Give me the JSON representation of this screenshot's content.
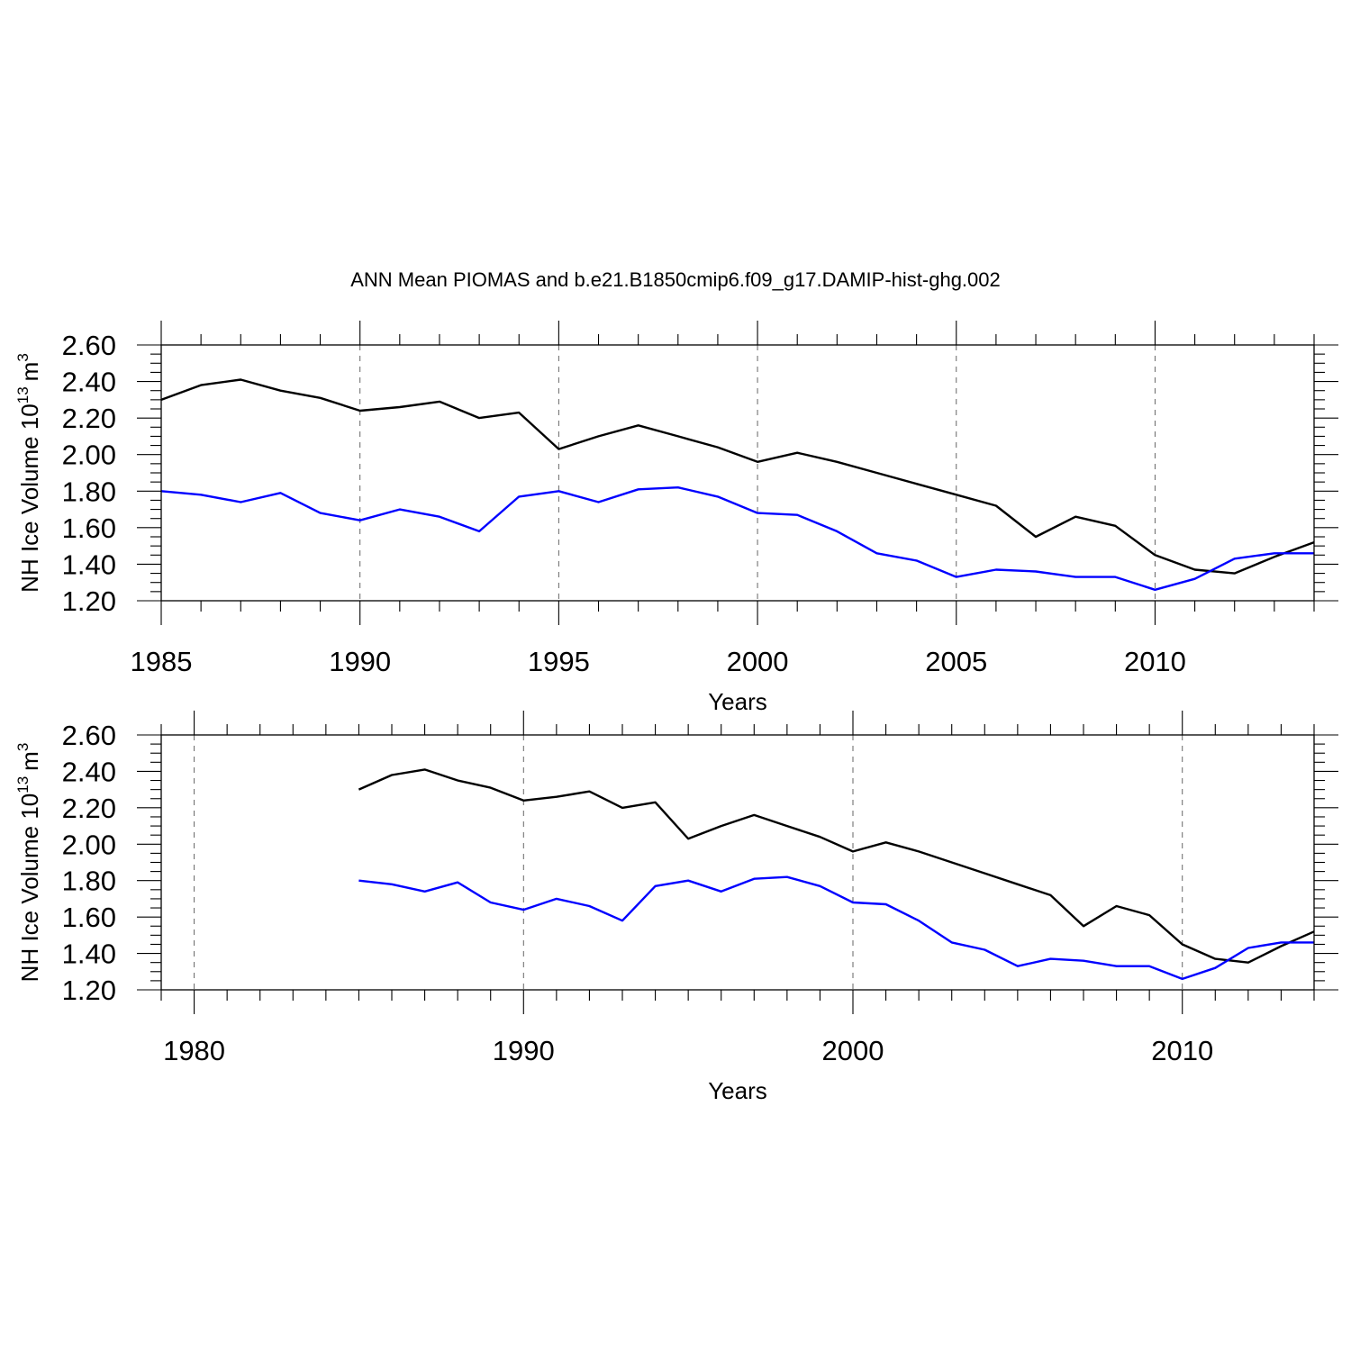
{
  "title": "ANN Mean PIOMAS and b.e21.B1850cmip6.f09_g17.DAMIP-hist-ghg.002",
  "colors": {
    "series_black": "#000000",
    "series_blue": "#0000ff"
  },
  "chart_data": [
    {
      "type": "line",
      "xlabel": "Years",
      "ylabel": "NH Ice Volume 10",
      "ylabel_sup": "13",
      "ylabel_unit": "m",
      "ylabel_unit_sup": "3",
      "xlim": [
        1985,
        2014
      ],
      "ylim": [
        1.2,
        2.6
      ],
      "x_major_ticks": [
        1985,
        1990,
        1995,
        2000,
        2005,
        2010
      ],
      "y_major_ticks": [
        1.2,
        1.4,
        1.6,
        1.8,
        2.0,
        2.2,
        2.4,
        2.6
      ],
      "x_tick_labels": [
        "1985",
        "1990",
        "1995",
        "2000",
        "2005",
        "2010"
      ],
      "y_tick_labels": [
        "1.20",
        "1.40",
        "1.60",
        "1.80",
        "2.00",
        "2.20",
        "2.40",
        "2.60"
      ],
      "grid": "vertical dashed at major x ticks",
      "x": [
        1985,
        1986,
        1987,
        1988,
        1989,
        1990,
        1991,
        1992,
        1993,
        1994,
        1995,
        1996,
        1997,
        1998,
        1999,
        2000,
        2001,
        2002,
        2003,
        2004,
        2005,
        2006,
        2007,
        2008,
        2009,
        2010,
        2011,
        2012,
        2013,
        2014
      ],
      "series": [
        {
          "color": "#000000",
          "values": [
            2.3,
            2.38,
            2.41,
            2.35,
            2.31,
            2.24,
            2.26,
            2.29,
            2.2,
            2.23,
            2.03,
            2.1,
            2.16,
            2.1,
            2.04,
            1.96,
            2.01,
            1.96,
            1.9,
            1.84,
            1.78,
            1.72,
            1.55,
            1.66,
            1.61,
            1.45,
            1.37,
            1.35,
            1.44,
            1.52
          ]
        },
        {
          "color": "#0000ff",
          "values": [
            1.8,
            1.78,
            1.74,
            1.79,
            1.68,
            1.64,
            1.7,
            1.66,
            1.58,
            1.77,
            1.8,
            1.74,
            1.81,
            1.82,
            1.77,
            1.68,
            1.67,
            1.58,
            1.46,
            1.42,
            1.33,
            1.37,
            1.36,
            1.33,
            1.33,
            1.26,
            1.32,
            1.43,
            1.46,
            1.46
          ]
        }
      ]
    },
    {
      "type": "line",
      "xlabel": "Years",
      "ylabel": "NH Ice Volume 10",
      "ylabel_sup": "13",
      "ylabel_unit": "m",
      "ylabel_unit_sup": "3",
      "xlim": [
        1979,
        2014
      ],
      "ylim": [
        1.2,
        2.6
      ],
      "x_major_ticks": [
        1980,
        1990,
        2000,
        2010
      ],
      "y_major_ticks": [
        1.2,
        1.4,
        1.6,
        1.8,
        2.0,
        2.2,
        2.4,
        2.6
      ],
      "x_tick_labels": [
        "1980",
        "1990",
        "2000",
        "2010"
      ],
      "y_tick_labels": [
        "1.20",
        "1.40",
        "1.60",
        "1.80",
        "2.00",
        "2.20",
        "2.40",
        "2.60"
      ],
      "grid": "vertical dashed at major x ticks",
      "x": [
        1985,
        1986,
        1987,
        1988,
        1989,
        1990,
        1991,
        1992,
        1993,
        1994,
        1995,
        1996,
        1997,
        1998,
        1999,
        2000,
        2001,
        2002,
        2003,
        2004,
        2005,
        2006,
        2007,
        2008,
        2009,
        2010,
        2011,
        2012,
        2013,
        2014
      ],
      "series": [
        {
          "color": "#000000",
          "values": [
            2.3,
            2.38,
            2.41,
            2.35,
            2.31,
            2.24,
            2.26,
            2.29,
            2.2,
            2.23,
            2.03,
            2.1,
            2.16,
            2.1,
            2.04,
            1.96,
            2.01,
            1.96,
            1.9,
            1.84,
            1.78,
            1.72,
            1.55,
            1.66,
            1.61,
            1.45,
            1.37,
            1.35,
            1.44,
            1.52
          ]
        },
        {
          "color": "#0000ff",
          "values": [
            1.8,
            1.78,
            1.74,
            1.79,
            1.68,
            1.64,
            1.7,
            1.66,
            1.58,
            1.77,
            1.8,
            1.74,
            1.81,
            1.82,
            1.77,
            1.68,
            1.67,
            1.58,
            1.46,
            1.42,
            1.33,
            1.37,
            1.36,
            1.33,
            1.33,
            1.26,
            1.32,
            1.43,
            1.46,
            1.46
          ]
        }
      ]
    }
  ]
}
